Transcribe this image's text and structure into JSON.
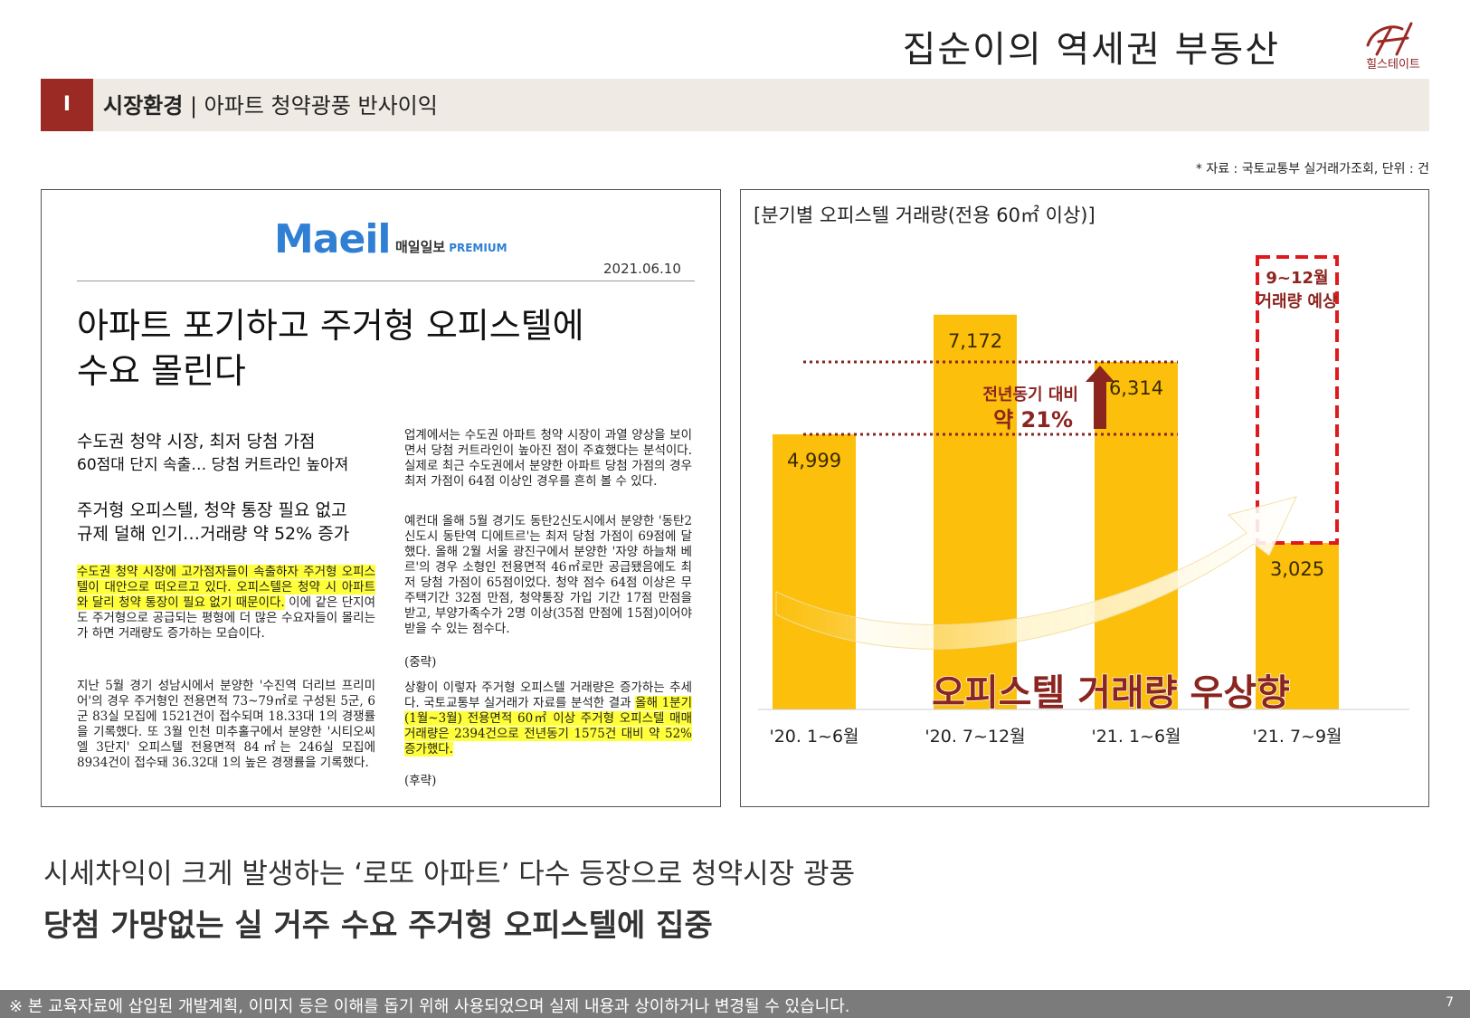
{
  "header": {
    "brand_title": "집순이의 역세권 부동산",
    "logo_text": "힐스테이트",
    "section_number": "I",
    "section_name": "시장환경",
    "section_subtitle": "| 아파트 청약광풍 반사이익",
    "source_note": "* 자료 : 국토교통부 실거래가조회, 단위 : 건"
  },
  "article": {
    "paper_logo": "Maeil",
    "paper_name": "매일일보",
    "paper_tag": "PREMIUM",
    "date": "2021.06.10",
    "headline_line1": "아파트 포기하고 주거형 오피스텔에",
    "headline_line2": "수요 몰린다",
    "sub1_line1": "수도권 청약 시장, 최저 당첨 가점",
    "sub1_line2": "60점대 단지 속출… 당첨 커트라인 높아져",
    "sub2_line1": "주거형 오피스텔, 청약 통장 필요 없고",
    "sub2_line2": "규제 덜해 인기…거래량 약 52% 증가",
    "left_p1_highlight": "수도권 청약 시장에 고가점자들이 속출하자 주거형 오피스텔이 대안으로 떠오르고 있다. 오피스텔은 청약 시 아파트와 달리 청약 통장이 필요 없기 때문이다.",
    "left_p1_rest": " 이에 같은 단지여도 주거형으로 공급되는 평형에 더 많은 수요자들이 몰리는가 하면 거래량도 증가하는 모습이다.",
    "left_p2": "지난 5월 경기 성남시에서 분양한 '수진역 더리브 프리미어'의 경우 주거형인 전용면적 73~79㎡로 구성된 5군, 6군 83실 모집에 1521건이 접수되며 18.33대 1의 경쟁률을 기록했다. 또 3월 인천 미추홀구에서 분양한 '시티오씨엘 3단지' 오피스텔 전용면적 84㎡는 246실 모집에 8934건이 접수돼 36.32대 1의 높은 경쟁률을 기록했다.",
    "right_p1": "업계에서는 수도권 아파트 청약 시장이 과열 양상을 보이면서 당첨 커트라인이 높아진 점이 주효했다는 분석이다. 실제로 최근 수도권에서 분양한 아파트 당첨 가점의 경우 최저 가점이 64점 이상인 경우를 흔히 볼 수 있다.",
    "right_p2": "예컨대 올해 5월 경기도 동탄2신도시에서 분양한 '동탄2신도시 동탄역 디에트르'는 최저 당첨 가점이 69점에 달했다. 올해 2월 서울 광진구에서 분양한 '자양 하늘채 베르'의 경우 소형인 전용면적 46㎡로만 공급됐음에도 최저 당첨 가점이 65점이었다. 청약 점수 64점 이상은 무주택기간 32점 만점, 청약통장 가입 기간 17점 만점을 받고, 부양가족수가 2명 이상(35점 만점에 15점)이어야 받을 수 있는 점수다.",
    "right_p3": "(중략)",
    "right_p4_start": "상황이 이렇자 주거형 오피스텔 거래량은 증가하는 추세다. 국토교통부 실거래가 자료를 분석한 결과 ",
    "right_p4_highlight": "올해 1분기(1월~3월) 전용면적 60㎡ 이상 주거형 오피스텔 매매 거래량은 2394건으로 전년동기 1575건 대비 약 52% 증가했다.",
    "right_p5": "(후략)"
  },
  "chart_data": {
    "type": "bar",
    "title": "[분기별 오피스텔 거래량(전용 60㎡ 이상)]",
    "categories": [
      "'20. 1~6월",
      "'20. 7~12월",
      "'21. 1~6월",
      "'21. 7~9월"
    ],
    "values": [
      4999,
      7172,
      6314,
      3025
    ],
    "value_labels": [
      "4,999",
      "7,172",
      "6,314",
      "3,025"
    ],
    "ylim": [
      0,
      8500
    ],
    "bar_color": "#fbbf0c",
    "forecast_box_label_line1": "9~12월",
    "forecast_box_label_line2": "거래량 예상",
    "comparison_label_line1": "전년동기 대비",
    "comparison_label_line2": "약 21%",
    "trend_label": "오피스텔 거래량 우상향",
    "accent_color": "#8b2520",
    "dashed_color": "#e0191c"
  },
  "bottom": {
    "line1": "시세차익이 크게 발생하는 ‘로또 아파트’ 다수 등장으로 청약시장 광풍",
    "line2": "당첨 가망없는 실 거주 수요 주거형 오피스텔에 집중"
  },
  "footer": {
    "disclaimer": "※ 본 교육자료에 삽입된 개발계획, 이미지 등은 이해를 돕기 위해 사용되었으며 실제 내용과 상이하거나 변경될 수 있습니다.",
    "page_number": "7"
  }
}
